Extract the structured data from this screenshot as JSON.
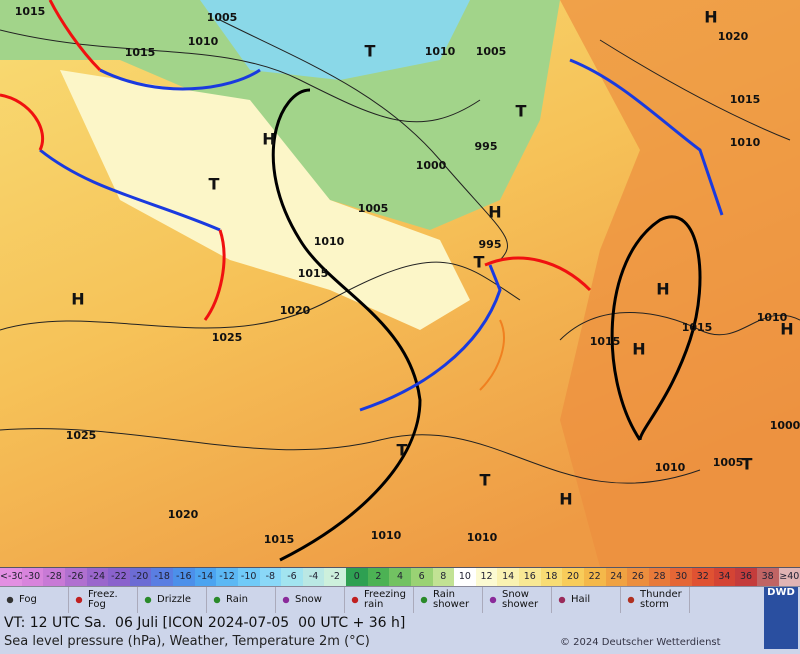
{
  "map": {
    "pressure_labels": [
      1015,
      1005,
      1010,
      1015,
      1010,
      1005,
      1020,
      1015,
      1010,
      995,
      1000,
      1005,
      1010,
      1015,
      995,
      1020,
      1025,
      1015,
      1015,
      1010,
      1025,
      1020,
      1015,
      1010,
      1010,
      1010,
      1005,
      1000
    ],
    "high_labels": [
      "H",
      "H",
      "H",
      "H",
      "H",
      "H",
      "H",
      "H"
    ],
    "low_labels": [
      "T",
      "T",
      "T",
      "T",
      "T",
      "T",
      "T"
    ]
  },
  "temperature_scale": [
    {
      "label": "<-30",
      "color": "#e28fe2"
    },
    {
      "label": "-30",
      "color": "#d884dc"
    },
    {
      "label": "-28",
      "color": "#c87ad6"
    },
    {
      "label": "-26",
      "color": "#b070d0"
    },
    {
      "label": "-24",
      "color": "#9a66cc"
    },
    {
      "label": "-22",
      "color": "#8a62cc"
    },
    {
      "label": "-20",
      "color": "#6c6cd4"
    },
    {
      "label": "-18",
      "color": "#5a7ee2"
    },
    {
      "label": "-16",
      "color": "#4c90ea"
    },
    {
      "label": "-14",
      "color": "#4ca4f0"
    },
    {
      "label": "-12",
      "color": "#5cb8f4"
    },
    {
      "label": "-10",
      "color": "#70caf8"
    },
    {
      "label": "-8",
      "color": "#8ad8f8"
    },
    {
      "label": "-6",
      "color": "#a2e4f0"
    },
    {
      "label": "-4",
      "color": "#bae8e4"
    },
    {
      "label": "-2",
      "color": "#cdf0dc"
    },
    {
      "label": "0",
      "color": "#2ea052"
    },
    {
      "label": "2",
      "color": "#4cb254"
    },
    {
      "label": "4",
      "color": "#72c262"
    },
    {
      "label": "6",
      "color": "#9ad274"
    },
    {
      "label": "8",
      "color": "#c2e294"
    },
    {
      "label": "10",
      "color": "#ffffff"
    },
    {
      "label": "12",
      "color": "#fcfad2"
    },
    {
      "label": "14",
      "color": "#faf2b2"
    },
    {
      "label": "16",
      "color": "#f8e894"
    },
    {
      "label": "18",
      "color": "#f8dc74"
    },
    {
      "label": "20",
      "color": "#f8cc5a"
    },
    {
      "label": "22",
      "color": "#f4b84a"
    },
    {
      "label": "24",
      "color": "#f0a242"
    },
    {
      "label": "26",
      "color": "#ec8e3e"
    },
    {
      "label": "28",
      "color": "#e87a3a"
    },
    {
      "label": "30",
      "color": "#e46636"
    },
    {
      "label": "32",
      "color": "#e05232"
    },
    {
      "label": "34",
      "color": "#d44434"
    },
    {
      "label": "36",
      "color": "#c43c3c"
    },
    {
      "label": "38",
      "color": "#c06464"
    },
    {
      "label": "≥40",
      "color": "#e0b4b4"
    }
  ],
  "weather_legend": [
    "Fog",
    "Freez. Fog",
    "Drizzle",
    "Rain",
    "Snow",
    "Freezing rain",
    "Rain shower",
    "Snow shower",
    "Hail",
    "Thunder storm"
  ],
  "footer": {
    "valid_time": "VT: 12 UTC Sa.  06 Juli [ICON 2024-07-05  00 UTC + 36 h]",
    "description": "Sea level pressure (hPa), Weather, Temperature 2m (°C)",
    "copyright": "© 2024 Deutscher Wetterdienst",
    "logo": "DWD"
  }
}
